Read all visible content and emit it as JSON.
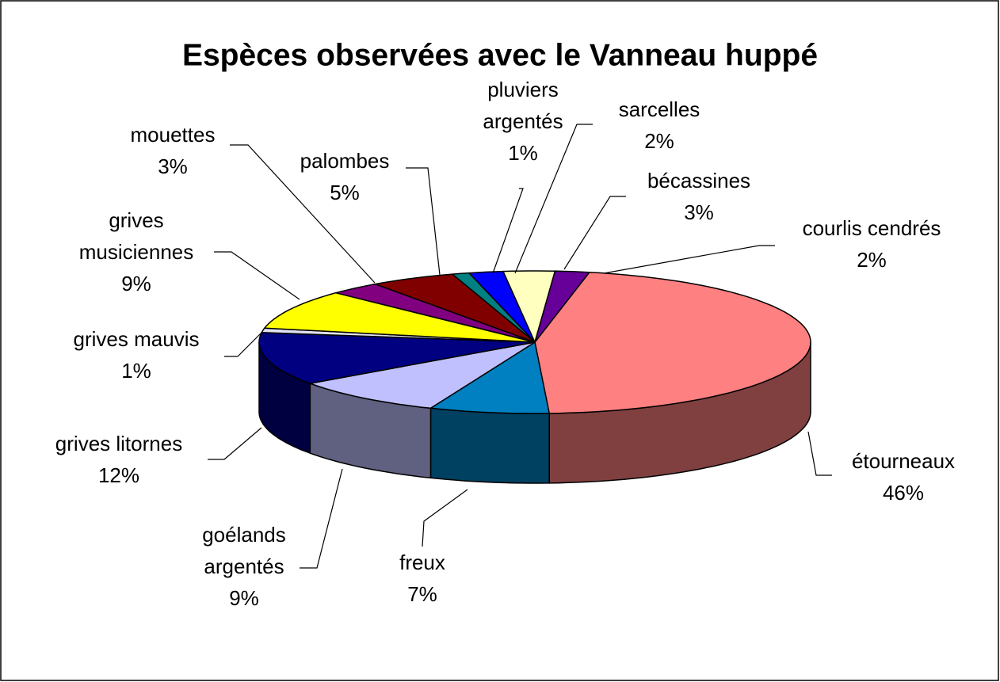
{
  "chart_data": {
    "type": "pie3d",
    "title": "Espèces observées avec le Vanneau huppé",
    "categories": [
      "étourneaux",
      "freux",
      "goélands argentés",
      "grives litornes",
      "grives mauvis",
      "grives musiciennes",
      "mouettes",
      "palombes",
      "pluviers argentés",
      "sarcelles",
      "bécassines",
      "courlis cendrés"
    ],
    "values": [
      46,
      7,
      9,
      12,
      1,
      9,
      3,
      5,
      1,
      2,
      3,
      2
    ],
    "value_labels": [
      "46%",
      "7%",
      "9%",
      "12%",
      "1%",
      "9%",
      "3%",
      "5%",
      "1%",
      "2%",
      "3%",
      "2%"
    ],
    "colors": [
      "#ff8080",
      "#0080c0",
      "#c0c0ff",
      "#000080",
      "#e0e0f0",
      "#ffff00",
      "#800080",
      "#800000",
      "#008080",
      "#0000ff",
      "#ffffc0",
      "#660099"
    ]
  }
}
